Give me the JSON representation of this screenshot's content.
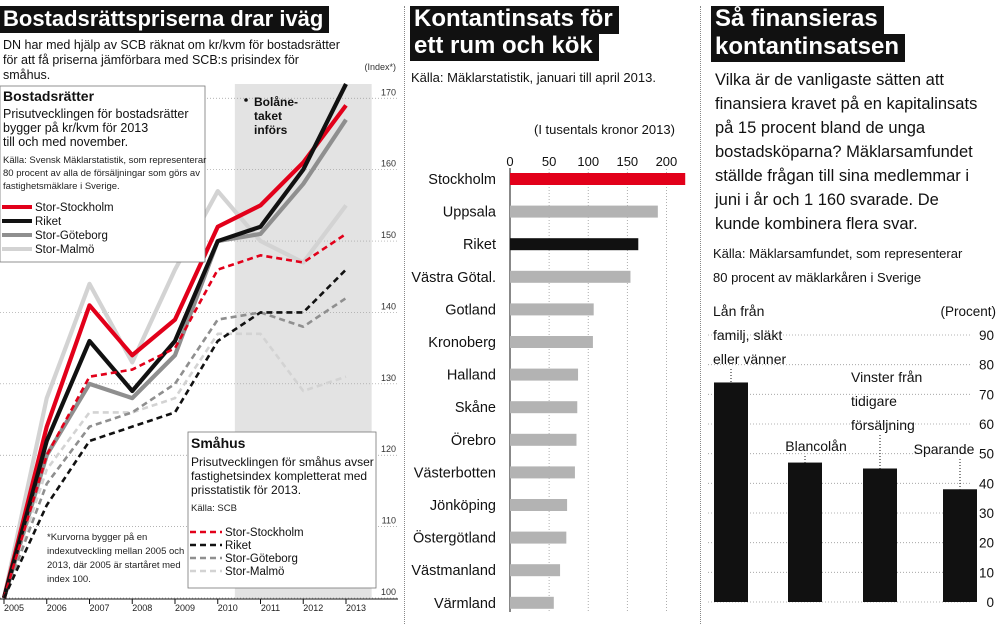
{
  "panel1": {
    "title": "Bostadsrättspriserna drar iväg",
    "intro": [
      "DN har med hjälp av SCB räknat om kr/kvm för bostadsrätter",
      "för att få priserna jämförbara med SCB:s prisindex för",
      "småhus."
    ],
    "box1": {
      "title": "Bostadsrätter",
      "text": [
        "Prisutvecklingen för bostadsrätter",
        "bygger på kr/kvm för 2013",
        "till och med november."
      ],
      "source": [
        "Källa: Svensk Mäklarstatistik, som representerar",
        "80 procent av alla de försäljningar som görs av",
        "fastighetsmäklare i Sverige."
      ],
      "legend": [
        "Stor-Stockholm",
        "Riket",
        "Stor-Göteborg",
        "Stor-Malmö"
      ]
    },
    "box2": {
      "title": "Småhus",
      "text": [
        "Prisutvecklingen för småhus avser",
        "fastighetsindex kompletterat med",
        "prisstatistik för 2013."
      ],
      "source": "Källa: SCB",
      "legend": [
        "Stor-Stockholm",
        "Riket",
        "Stor-Göteborg",
        "Stor-Malmö"
      ]
    },
    "footnote": [
      "*Kurvorna bygger på en",
      "indexutveckling mellan 2005 och",
      "2013, där 2005 är startåret med",
      "index 100."
    ],
    "annotation": [
      "Bolåne-",
      "taket",
      "införs"
    ],
    "colors": {
      "stockholm": "#e2001a",
      "riket": "#111111",
      "goteborg": "#8f8f8f",
      "malmo": "#d3d3d3",
      "shade": "#e3e3e3"
    }
  },
  "chart_data": [
    {
      "type": "line",
      "title": "Bostadsrättspriserna drar iväg",
      "ylabel": "(Index*)",
      "ylim": [
        100,
        172
      ],
      "ytick_labels": [
        "100",
        "110",
        "120",
        "130",
        "140",
        "150",
        "160",
        "170"
      ],
      "xtick_labels": [
        "2005",
        "2006",
        "2007",
        "2008",
        "2009",
        "2010",
        "2011",
        "2012",
        "2013"
      ],
      "grid": true,
      "shaded_region": [
        "2010.4",
        "2013.6"
      ],
      "series": [
        {
          "name": "Stor-Stockholm",
          "group": "Bostadsrätter",
          "style": "solid",
          "x": [
            2005,
            2006,
            2007,
            2008,
            2009,
            2010,
            2011,
            2012,
            2013
          ],
          "values": [
            100,
            124,
            141,
            134,
            139,
            152,
            155,
            161,
            169
          ]
        },
        {
          "name": "Riket",
          "group": "Bostadsrätter",
          "style": "solid",
          "x": [
            2005,
            2006,
            2007,
            2008,
            2009,
            2010,
            2011,
            2012,
            2013
          ],
          "values": [
            100,
            122,
            136,
            129,
            136,
            150,
            152,
            160,
            172
          ]
        },
        {
          "name": "Stor-Göteborg",
          "group": "Bostadsrätter",
          "style": "solid",
          "x": [
            2005,
            2006,
            2007,
            2008,
            2009,
            2010,
            2011,
            2012,
            2013
          ],
          "values": [
            100,
            120,
            130,
            128,
            134,
            150,
            151,
            158,
            167
          ]
        },
        {
          "name": "Stor-Malmö",
          "group": "Bostadsrätter",
          "style": "solid",
          "x": [
            2005,
            2006,
            2007,
            2008,
            2009,
            2010,
            2011,
            2012,
            2013
          ],
          "values": [
            100,
            128,
            144,
            133,
            146,
            157,
            150,
            147,
            155
          ]
        },
        {
          "name": "Stor-Stockholm",
          "group": "Småhus",
          "style": "dashed",
          "x": [
            2005,
            2006,
            2007,
            2008,
            2009,
            2010,
            2011,
            2012,
            2013
          ],
          "values": [
            100,
            120,
            131,
            132,
            135,
            146,
            148,
            147,
            151
          ]
        },
        {
          "name": "Riket",
          "group": "Småhus",
          "style": "dashed",
          "x": [
            2005,
            2006,
            2007,
            2008,
            2009,
            2010,
            2011,
            2012,
            2013
          ],
          "values": [
            100,
            113,
            122,
            124,
            126,
            136,
            140,
            140,
            146
          ]
        },
        {
          "name": "Stor-Göteborg",
          "group": "Småhus",
          "style": "dashed",
          "x": [
            2005,
            2006,
            2007,
            2008,
            2009,
            2010,
            2011,
            2012,
            2013
          ],
          "values": [
            100,
            116,
            124,
            126,
            130,
            139,
            140,
            138,
            142
          ]
        },
        {
          "name": "Stor-Malmö",
          "group": "Småhus",
          "style": "dashed",
          "x": [
            2005,
            2006,
            2007,
            2008,
            2009,
            2010,
            2011,
            2012,
            2013
          ],
          "values": [
            100,
            118,
            126,
            126,
            128,
            137,
            137,
            129,
            131
          ]
        }
      ]
    },
    {
      "type": "bar",
      "orientation": "horizontal",
      "title": "Kontantinsats för ett rum och kök",
      "subtitle": "Källa: Mäklarstatistik, januari till april 2013.",
      "xlabel": "(I tusentals kronor 2013)",
      "xlim": [
        0,
        225
      ],
      "xtick_labels": [
        "0",
        "50",
        "100",
        "150",
        "200"
      ],
      "categories": [
        "Stockholm",
        "Uppsala",
        "Riket",
        "Västra Götal.",
        "Gotland",
        "Kronoberg",
        "Halland",
        "Skåne",
        "Örebro",
        "Västerbotten",
        "Jönköping",
        "Östergötland",
        "Västmanland",
        "Värmland"
      ],
      "values": [
        224,
        189,
        164,
        154,
        107,
        106,
        87,
        86,
        85,
        83,
        73,
        72,
        64,
        56
      ],
      "bar_colors": [
        "#e2001a",
        "#b3b3b3",
        "#111111",
        "#b3b3b3",
        "#b3b3b3",
        "#b3b3b3",
        "#b3b3b3",
        "#b3b3b3",
        "#b3b3b3",
        "#b3b3b3",
        "#b3b3b3",
        "#b3b3b3",
        "#b3b3b3",
        "#b3b3b3"
      ]
    },
    {
      "type": "bar",
      "title": "Så finansieras kontantinsatsen",
      "ylabel": "(Procent)",
      "ylim": [
        0,
        90
      ],
      "ytick_labels": [
        "0",
        "10",
        "20",
        "30",
        "40",
        "50",
        "60",
        "70",
        "80",
        "90"
      ],
      "categories": [
        "Lån från familj, släkt eller vänner",
        "Blancolån",
        "Vinster från tidigare försäljning",
        "Sparande"
      ],
      "values": [
        74,
        47,
        45,
        38
      ]
    }
  ],
  "panel2": {
    "title": [
      "Kontantinsats för",
      "ett rum och kök"
    ],
    "source": "Källa: Mäklarstatistik, januari till april 2013.",
    "axis_label": "(I tusentals kronor 2013)"
  },
  "panel3": {
    "title": [
      "Så finansieras",
      "kontantinsatsen"
    ],
    "intro": [
      "Vilka är de vanligaste sätten att",
      "finansiera kravet på en kapitalinsats",
      "på 15 procent bland de unga",
      "bostadsköparna? Mäklarsamfundet",
      "ställde frågan till sina medlemmar i",
      "juni i år och 1 160 svarade. De",
      "kunde kombinera flera svar."
    ],
    "source": [
      "Källa: Mäklarsamfundet, som representerar",
      "80 procent av mäklarkåren i Sverige"
    ],
    "bar_labels": [
      [
        "Lån från",
        "familj, släkt",
        "eller vänner"
      ],
      [
        "Blancolån"
      ],
      [
        "Vinster från",
        "tidigare",
        "försäljning"
      ],
      [
        "Sparande"
      ]
    ],
    "axis_label": "(Procent)"
  }
}
